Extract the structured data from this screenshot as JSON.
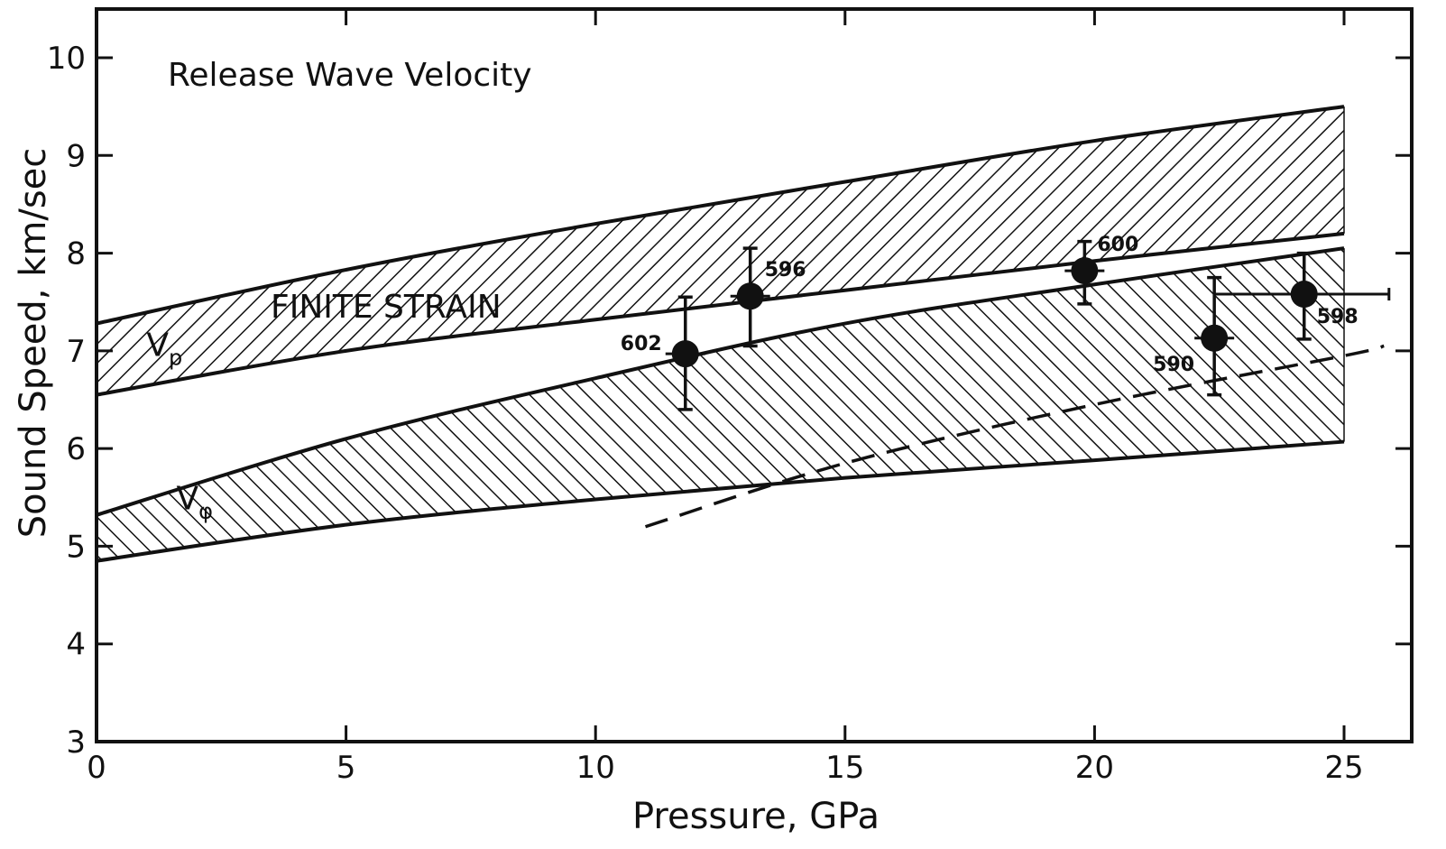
{
  "chart_data": {
    "type": "line",
    "title": "Release Wave Velocity",
    "xlabel": "Pressure, GPa",
    "ylabel": "Sound Speed, km/sec",
    "xlim": [
      0,
      26.5
    ],
    "ylim": [
      3,
      10.5
    ],
    "xticks": [
      0,
      5,
      10,
      15,
      20,
      25
    ],
    "yticks": [
      3,
      4,
      5,
      6,
      7,
      8,
      9,
      10
    ],
    "grid": false,
    "bands": [
      {
        "name": "Vp",
        "label": "FINITE STRAIN",
        "x": [
          0,
          5,
          10,
          15,
          20,
          25
        ],
        "upper": [
          7.28,
          7.83,
          8.3,
          8.73,
          9.15,
          9.5
        ],
        "lower": [
          6.55,
          7.0,
          7.32,
          7.62,
          7.92,
          8.2
        ]
      },
      {
        "name": "Vφ",
        "x": [
          0,
          5,
          10,
          15,
          20,
          25
        ],
        "upper": [
          5.32,
          6.1,
          6.72,
          7.28,
          7.68,
          8.05
        ],
        "lower": [
          4.85,
          5.22,
          5.48,
          5.7,
          5.88,
          6.07
        ]
      }
    ],
    "dashed_line": {
      "x": [
        11,
        15,
        20,
        25,
        25.8
      ],
      "y": [
        5.2,
        5.85,
        6.45,
        6.95,
        7.05
      ]
    },
    "points": [
      {
        "label": "602",
        "x": 11.8,
        "y": 6.97,
        "y_err_low": 6.4,
        "y_err_high": 7.55
      },
      {
        "label": "596",
        "x": 13.1,
        "y": 7.56,
        "y_err_low": 7.05,
        "y_err_high": 8.05
      },
      {
        "label": "600",
        "x": 19.8,
        "y": 7.82,
        "y_err_low": 7.48,
        "y_err_high": 8.12
      },
      {
        "label": "590",
        "x": 22.4,
        "y": 7.13,
        "y_err_low": 6.55,
        "y_err_high": 7.75
      },
      {
        "label": "598",
        "x": 24.2,
        "y": 7.58,
        "y_err_low": 7.12,
        "y_err_high": 8.0,
        "x_err_low": 22.4,
        "x_err_high": 25.9
      }
    ]
  }
}
